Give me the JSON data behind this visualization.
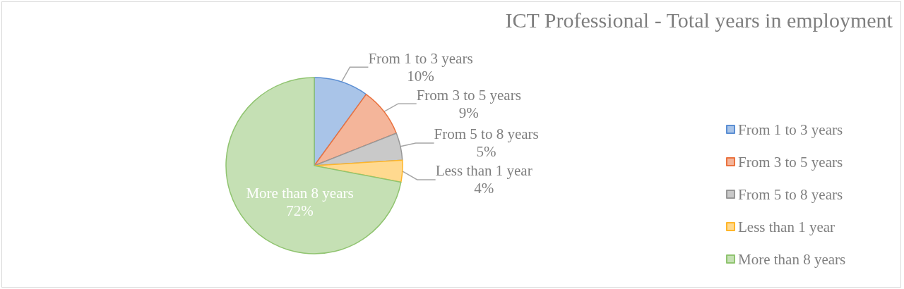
{
  "chart_data": {
    "type": "pie",
    "title": "ICT Professional - Total years in employment",
    "categories": [
      "From 1 to 3 years",
      "From 3 to 5 years",
      "From 5 to 8 years",
      "Less than 1 year",
      "More than 8 years"
    ],
    "values": [
      10,
      9,
      5,
      4,
      72
    ],
    "value_labels": [
      "10%",
      "9%",
      "5%",
      "4%",
      "72%"
    ],
    "colors": [
      "#a9c4e8",
      "#f4b59a",
      "#c9c9c9",
      "#ffd98f",
      "#c5e0b4"
    ],
    "legend": "right"
  }
}
